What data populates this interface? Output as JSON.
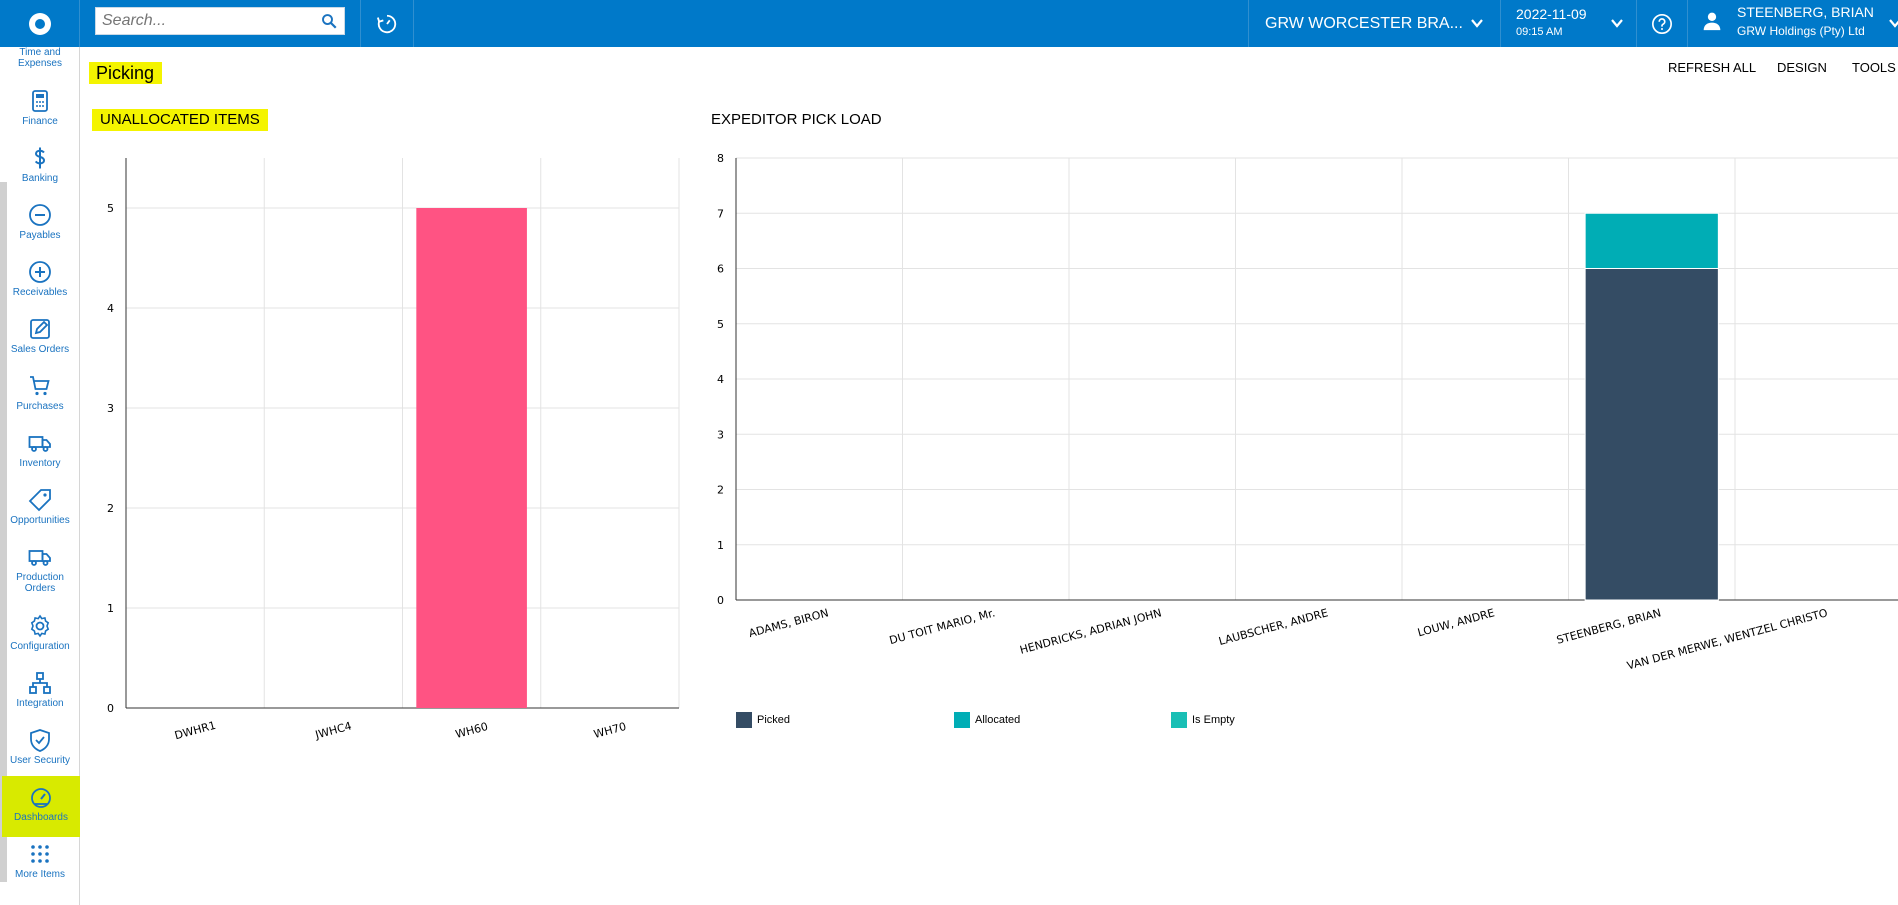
{
  "header": {
    "search_placeholder": "Search...",
    "branch": "GRW WORCESTER BRA...",
    "date": "2022-11-09",
    "time": "09:15 AM",
    "user_name": "STEENBERG, BRIAN",
    "user_company": "GRW Holdings (Pty) Ltd"
  },
  "sidebar": {
    "top_cut_label": "Time and Expenses",
    "items": [
      {
        "label": "Finance",
        "icon": "calculator-icon"
      },
      {
        "label": "Banking",
        "icon": "dollar-icon"
      },
      {
        "label": "Payables",
        "icon": "minus-circle-icon"
      },
      {
        "label": "Receivables",
        "icon": "plus-circle-icon"
      },
      {
        "label": "Sales Orders",
        "icon": "edit-icon"
      },
      {
        "label": "Purchases",
        "icon": "cart-icon"
      },
      {
        "label": "Inventory",
        "icon": "truck-icon"
      },
      {
        "label": "Opportunities",
        "icon": "tag-icon"
      },
      {
        "label": "Production Orders",
        "icon": "truck-icon"
      },
      {
        "label": "Configuration",
        "icon": "gear-icon"
      },
      {
        "label": "Integration",
        "icon": "network-icon"
      },
      {
        "label": "User Security",
        "icon": "shield-icon"
      },
      {
        "label": "Dashboards",
        "icon": "gauge-icon"
      },
      {
        "label": "More Items",
        "icon": "grid-icon"
      }
    ]
  },
  "page": {
    "title": "Picking",
    "refresh_all": "REFRESH ALL",
    "design": "DESIGN",
    "tools": "TOOLS"
  },
  "colors": {
    "brand": "#0079c9",
    "highlight": "#f4f400",
    "bar_pink": "#ff5383",
    "picked": "#344c64",
    "allocated": "#00adb5",
    "is_empty": "#19bfb5"
  },
  "chart_data": [
    {
      "type": "bar",
      "title": "UNALLOCATED ITEMS",
      "categories": [
        "DWHR1",
        "JWHC4",
        "WH60",
        "WH70"
      ],
      "values": [
        0,
        0,
        5,
        0
      ],
      "ylim": [
        0,
        5.5
      ],
      "yticks": [
        0,
        1,
        2,
        3,
        4,
        5
      ],
      "grid": true
    },
    {
      "type": "bar",
      "stacked": true,
      "title": "EXPEDITOR PICK LOAD",
      "categories": [
        "ADAMS, BIRON",
        "DU TOIT MARIO, Mr.",
        "HENDRICKS, ADRIAN JOHN",
        "LAUBSCHER, ANDRE",
        "LOUW, ANDRE",
        "STEENBERG, BRIAN",
        "VAN DER MERWE, WENTZEL CHRISTO"
      ],
      "series": [
        {
          "name": "Picked",
          "values": [
            0,
            0,
            0,
            0,
            0,
            6,
            0
          ]
        },
        {
          "name": "Allocated",
          "values": [
            0,
            0,
            0,
            0,
            0,
            1,
            0
          ]
        },
        {
          "name": "Is Empty",
          "values": [
            0,
            0,
            0,
            0,
            0,
            0,
            0
          ]
        }
      ],
      "ylim": [
        0,
        8
      ],
      "yticks": [
        0,
        1,
        2,
        3,
        4,
        5,
        6,
        7,
        8
      ],
      "legend_position": "bottom-left",
      "grid": true
    }
  ]
}
